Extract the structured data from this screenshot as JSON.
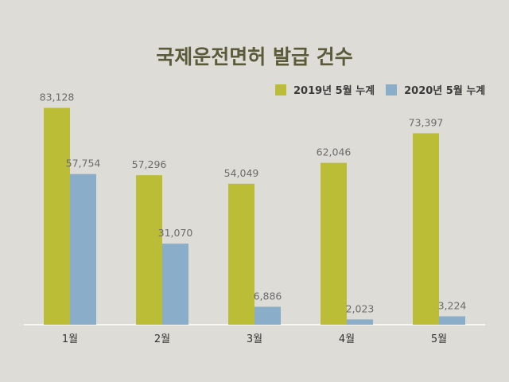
{
  "chart_data": {
    "type": "bar",
    "title": "국제운전면허 발급 건수",
    "categories": [
      "1월",
      "2월",
      "3월",
      "4월",
      "5월"
    ],
    "series": [
      {
        "name": "2019년 5월 누계",
        "values": [
          83128,
          57296,
          54049,
          62046,
          73397
        ],
        "labels": [
          "83,128",
          "57,296",
          "54,049",
          "62,046",
          "73,397"
        ],
        "color": "#bcbd37"
      },
      {
        "name": "2020년 5월 누계",
        "values": [
          57754,
          31070,
          6886,
          2023,
          3224
        ],
        "labels": [
          "57,754",
          "31,070",
          "6,886",
          "2,023",
          "3,224"
        ],
        "color": "#8aaec9"
      }
    ],
    "ylim": [
      0,
      90000
    ],
    "grid": false,
    "legend": "top-right"
  }
}
